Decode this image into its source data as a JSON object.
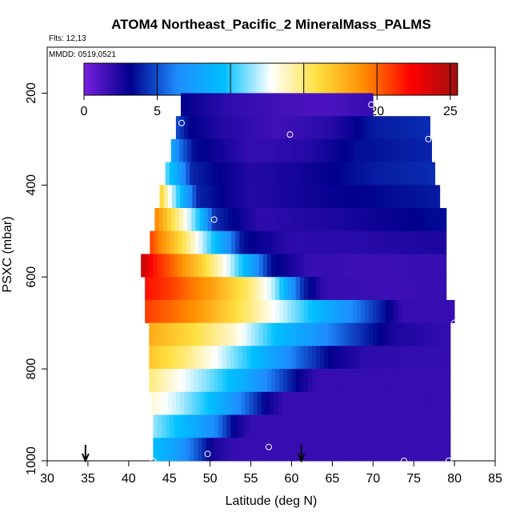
{
  "header": {
    "title": "ATOM4 Northeast_Pacific_2 MineralMass_PALMS",
    "flights": "Flts: 12,13",
    "mmdd": "MMDD: 0519,0521"
  },
  "colors": {
    "scale": [
      "#7a1fe0",
      "#00008c",
      "#1e8cff",
      "#00c0ff",
      "#ffffff",
      "#ffe040",
      "#ff8c00",
      "#ff0000",
      "#a01010"
    ]
  },
  "chart_data": {
    "type": "heatmap",
    "xlabel": "Latitude (deg N)",
    "ylabel": "PSXC (mbar)",
    "xlim": [
      30,
      85
    ],
    "ylim": [
      1000,
      100
    ],
    "xticks": [
      30,
      35,
      40,
      45,
      50,
      55,
      60,
      65,
      70,
      75,
      80,
      85
    ],
    "yticks": [
      200,
      400,
      600,
      800,
      1000
    ],
    "colorbar": {
      "min": 0,
      "max": 25.5,
      "ticks": [
        0,
        5,
        10,
        15,
        20,
        25
      ]
    },
    "arrows_at_latitude": [
      34.7,
      61.2
    ],
    "rows": [
      {
        "p": 225,
        "lat_min": 46.4,
        "lat_max": 70.0,
        "points": [
          [
            46.4,
            3.2
          ],
          [
            52.0,
            2.0
          ],
          [
            58.0,
            1.5
          ],
          [
            64.0,
            1.2
          ],
          [
            70.0,
            1.8
          ]
        ]
      },
      {
        "p": 275,
        "lat_min": 45.8,
        "lat_max": 77.0,
        "points": [
          [
            45.8,
            5.0
          ],
          [
            47.5,
            3.2
          ],
          [
            52.0,
            2.2
          ],
          [
            58.0,
            1.5
          ],
          [
            65.0,
            2.2
          ],
          [
            70.0,
            3.8
          ],
          [
            77.0,
            4.2
          ]
        ]
      },
      {
        "p": 325,
        "lat_min": 45.2,
        "lat_max": 77.2,
        "points": [
          [
            45.2,
            8.0
          ],
          [
            46.5,
            5.5
          ],
          [
            48.0,
            3.5
          ],
          [
            55.0,
            1.8
          ],
          [
            62.0,
            2.2
          ],
          [
            68.0,
            3.5
          ],
          [
            77.2,
            4.0
          ]
        ]
      },
      {
        "p": 375,
        "lat_min": 44.5,
        "lat_max": 77.6,
        "points": [
          [
            44.5,
            11.0
          ],
          [
            46.0,
            8.0
          ],
          [
            47.8,
            4.0
          ],
          [
            55.0,
            2.2
          ],
          [
            62.0,
            2.8
          ],
          [
            70.0,
            3.8
          ],
          [
            77.6,
            4.2
          ]
        ]
      },
      {
        "p": 425,
        "lat_min": 43.8,
        "lat_max": 78.2,
        "points": [
          [
            43.8,
            17.0
          ],
          [
            45.0,
            13.0
          ],
          [
            46.5,
            9.0
          ],
          [
            48.5,
            4.0
          ],
          [
            55.0,
            2.2
          ],
          [
            65.0,
            3.0
          ],
          [
            78.2,
            3.8
          ]
        ]
      },
      {
        "p": 475,
        "lat_min": 43.2,
        "lat_max": 79.0,
        "points": [
          [
            43.2,
            19.5
          ],
          [
            45.0,
            16.5
          ],
          [
            47.0,
            13.0
          ],
          [
            48.8,
            9.5
          ],
          [
            50.5,
            4.2
          ],
          [
            56.0,
            2.0
          ],
          [
            66.0,
            2.5
          ],
          [
            79.0,
            3.5
          ]
        ]
      },
      {
        "p": 525,
        "lat_min": 42.6,
        "lat_max": 79.0,
        "points": [
          [
            42.6,
            21.0
          ],
          [
            44.0,
            19.0
          ],
          [
            46.5,
            16.0
          ],
          [
            49.0,
            12.0
          ],
          [
            51.5,
            8.0
          ],
          [
            54.0,
            3.5
          ],
          [
            60.0,
            2.0
          ],
          [
            70.0,
            2.2
          ],
          [
            79.0,
            2.5
          ]
        ]
      },
      {
        "p": 575,
        "lat_min": 41.5,
        "lat_max": 79.0,
        "points": [
          [
            41.5,
            24.5
          ],
          [
            43.0,
            22.0
          ],
          [
            46.0,
            19.5
          ],
          [
            49.5,
            16.0
          ],
          [
            52.5,
            12.0
          ],
          [
            55.0,
            8.0
          ],
          [
            57.5,
            3.5
          ],
          [
            62.0,
            1.8
          ],
          [
            70.0,
            1.6
          ],
          [
            79.0,
            1.8
          ]
        ]
      },
      {
        "p": 625,
        "lat_min": 42.0,
        "lat_max": 79.0,
        "points": [
          [
            42.0,
            22.0
          ],
          [
            45.0,
            21.0
          ],
          [
            50.0,
            18.5
          ],
          [
            55.0,
            15.0
          ],
          [
            58.0,
            11.5
          ],
          [
            60.0,
            7.0
          ],
          [
            61.5,
            4.0
          ],
          [
            64.0,
            1.8
          ],
          [
            72.0,
            1.6
          ],
          [
            79.0,
            1.8
          ]
        ]
      },
      {
        "p": 675,
        "lat_min": 42.0,
        "lat_max": 80.0,
        "points": [
          [
            42.0,
            21.0
          ],
          [
            48.0,
            19.0
          ],
          [
            54.0,
            15.5
          ],
          [
            59.0,
            12.0
          ],
          [
            64.0,
            8.5
          ],
          [
            68.0,
            6.0
          ],
          [
            71.5,
            3.5
          ],
          [
            73.5,
            1.8
          ],
          [
            80.0,
            1.8
          ]
        ]
      },
      {
        "p": 725,
        "lat_min": 42.5,
        "lat_max": 79.5,
        "points": [
          [
            42.5,
            18.0
          ],
          [
            48.0,
            16.0
          ],
          [
            53.0,
            13.5
          ],
          [
            58.0,
            9.5
          ],
          [
            63.0,
            7.0
          ],
          [
            68.0,
            4.5
          ],
          [
            72.5,
            2.5
          ],
          [
            79.5,
            1.8
          ]
        ]
      },
      {
        "p": 775,
        "lat_min": 42.5,
        "lat_max": 79.5,
        "points": [
          [
            42.5,
            17.0
          ],
          [
            47.0,
            15.0
          ],
          [
            51.0,
            12.5
          ],
          [
            56.0,
            9.0
          ],
          [
            61.0,
            5.5
          ],
          [
            65.0,
            3.0
          ],
          [
            69.0,
            2.0
          ],
          [
            79.5,
            1.8
          ]
        ]
      },
      {
        "p": 825,
        "lat_min": 42.5,
        "lat_max": 79.5,
        "points": [
          [
            42.5,
            15.0
          ],
          [
            46.0,
            13.0
          ],
          [
            50.0,
            11.0
          ],
          [
            54.0,
            8.5
          ],
          [
            58.0,
            5.5
          ],
          [
            61.0,
            3.0
          ],
          [
            63.0,
            1.8
          ],
          [
            79.5,
            1.8
          ]
        ]
      },
      {
        "p": 875,
        "lat_min": 42.8,
        "lat_max": 79.5,
        "points": [
          [
            42.8,
            13.5
          ],
          [
            46.0,
            12.0
          ],
          [
            50.0,
            9.5
          ],
          [
            54.0,
            6.0
          ],
          [
            57.0,
            3.0
          ],
          [
            59.0,
            1.8
          ],
          [
            79.5,
            1.8
          ]
        ]
      },
      {
        "p": 925,
        "lat_min": 43.0,
        "lat_max": 79.5,
        "points": [
          [
            43.0,
            11.5
          ],
          [
            46.0,
            9.5
          ],
          [
            48.5,
            8.0
          ],
          [
            51.0,
            6.0
          ],
          [
            53.0,
            3.0
          ],
          [
            55.0,
            1.8
          ],
          [
            79.5,
            1.8
          ]
        ]
      },
      {
        "p": 975,
        "lat_min": 43.0,
        "lat_max": 79.5,
        "points": [
          [
            43.0,
            9.5
          ],
          [
            46.0,
            7.5
          ],
          [
            48.5,
            5.0
          ],
          [
            50.5,
            2.5
          ],
          [
            53.0,
            1.8
          ],
          [
            79.5,
            1.8
          ]
        ]
      }
    ],
    "sample_circles": [
      [
        69.8,
        225
      ],
      [
        46.5,
        265
      ],
      [
        59.8,
        290
      ],
      [
        76.8,
        300
      ],
      [
        50.5,
        475
      ],
      [
        41.3,
        530
      ],
      [
        80.0,
        700
      ],
      [
        57.2,
        970
      ],
      [
        49.7,
        985
      ],
      [
        43.0,
        1000
      ],
      [
        73.8,
        1000
      ],
      [
        79.3,
        1000
      ]
    ]
  }
}
